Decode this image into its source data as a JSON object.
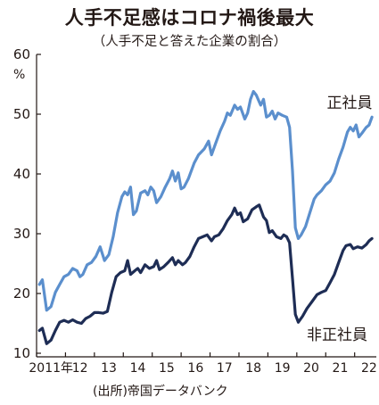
{
  "header": {
    "title": "人手不足感はコロナ禍後最大",
    "subtitle": "（人手不足と答えた企業の割合）"
  },
  "source": "(出所)帝国データバンク",
  "chart_data": {
    "type": "line",
    "title": "人手不足感はコロナ禍後最大",
    "subtitle": "（人手不足と答えた企業の割合）",
    "unit": "%",
    "xlabel": "",
    "ylabel": "",
    "ylim": [
      10,
      60
    ],
    "xlim": [
      2011,
      2022.75
    ],
    "yticks": [
      10,
      20,
      30,
      40,
      50,
      60
    ],
    "xticks": [
      {
        "x": 2011.5,
        "label": "2011年"
      },
      {
        "x": 2012.5,
        "label": "12"
      },
      {
        "x": 2013.5,
        "label": "13"
      },
      {
        "x": 2014.5,
        "label": "14"
      },
      {
        "x": 2015.5,
        "label": "15"
      },
      {
        "x": 2016.5,
        "label": "16"
      },
      {
        "x": 2017.5,
        "label": "17"
      },
      {
        "x": 2018.5,
        "label": "18"
      },
      {
        "x": 2019.5,
        "label": "19"
      },
      {
        "x": 2020.5,
        "label": "20"
      },
      {
        "x": 2021.5,
        "label": "21"
      },
      {
        "x": 2022.5,
        "label": "22"
      }
    ],
    "grid": false,
    "legend": "inline labels at right",
    "series": [
      {
        "name": "正社員",
        "color": "#5b8fcd",
        "points": [
          [
            2011.1,
            21.5
          ],
          [
            2011.2,
            22.3
          ],
          [
            2011.35,
            17.2
          ],
          [
            2011.5,
            17.8
          ],
          [
            2011.65,
            20.2
          ],
          [
            2011.8,
            21.5
          ],
          [
            2011.95,
            22.8
          ],
          [
            2012.1,
            23.2
          ],
          [
            2012.25,
            24.2
          ],
          [
            2012.4,
            23.8
          ],
          [
            2012.5,
            22.8
          ],
          [
            2012.6,
            23.2
          ],
          [
            2012.75,
            24.8
          ],
          [
            2012.9,
            25.2
          ],
          [
            2013.05,
            26.2
          ],
          [
            2013.2,
            27.8
          ],
          [
            2013.35,
            25.5
          ],
          [
            2013.5,
            26.5
          ],
          [
            2013.65,
            29.5
          ],
          [
            2013.8,
            33.5
          ],
          [
            2013.95,
            36.2
          ],
          [
            2014.05,
            37.0
          ],
          [
            2014.15,
            36.5
          ],
          [
            2014.25,
            37.8
          ],
          [
            2014.35,
            33.2
          ],
          [
            2014.45,
            33.8
          ],
          [
            2014.6,
            36.8
          ],
          [
            2014.75,
            37.2
          ],
          [
            2014.85,
            36.5
          ],
          [
            2014.95,
            37.8
          ],
          [
            2015.05,
            37.2
          ],
          [
            2015.15,
            35.2
          ],
          [
            2015.3,
            36.2
          ],
          [
            2015.45,
            37.8
          ],
          [
            2015.6,
            39.2
          ],
          [
            2015.7,
            40.5
          ],
          [
            2015.8,
            38.8
          ],
          [
            2015.9,
            40.2
          ],
          [
            2016.0,
            37.5
          ],
          [
            2016.1,
            37.8
          ],
          [
            2016.25,
            39.2
          ],
          [
            2016.45,
            41.8
          ],
          [
            2016.6,
            43.2
          ],
          [
            2016.8,
            44.2
          ],
          [
            2016.95,
            45.5
          ],
          [
            2017.05,
            43.2
          ],
          [
            2017.2,
            45.2
          ],
          [
            2017.35,
            47.2
          ],
          [
            2017.5,
            48.8
          ],
          [
            2017.6,
            50.2
          ],
          [
            2017.7,
            49.8
          ],
          [
            2017.85,
            51.5
          ],
          [
            2017.95,
            50.8
          ],
          [
            2018.05,
            51.2
          ],
          [
            2018.2,
            49.2
          ],
          [
            2018.3,
            50.2
          ],
          [
            2018.4,
            52.5
          ],
          [
            2018.5,
            53.8
          ],
          [
            2018.6,
            53.2
          ],
          [
            2018.75,
            51.5
          ],
          [
            2018.85,
            52.5
          ],
          [
            2018.95,
            49.5
          ],
          [
            2019.05,
            49.8
          ],
          [
            2019.15,
            50.5
          ],
          [
            2019.25,
            49.2
          ],
          [
            2019.35,
            50.2
          ],
          [
            2019.5,
            49.8
          ],
          [
            2019.65,
            49.5
          ],
          [
            2019.75,
            47.8
          ],
          [
            2019.85,
            40.5
          ],
          [
            2019.95,
            31.0
          ],
          [
            2020.05,
            29.2
          ],
          [
            2020.15,
            29.8
          ],
          [
            2020.3,
            31.2
          ],
          [
            2020.45,
            33.5
          ],
          [
            2020.6,
            35.8
          ],
          [
            2020.7,
            36.5
          ],
          [
            2020.85,
            37.2
          ],
          [
            2021.0,
            38.2
          ],
          [
            2021.15,
            38.8
          ],
          [
            2021.3,
            40.2
          ],
          [
            2021.45,
            42.5
          ],
          [
            2021.6,
            44.5
          ],
          [
            2021.75,
            47.0
          ],
          [
            2021.85,
            47.8
          ],
          [
            2021.95,
            47.2
          ],
          [
            2022.05,
            48.2
          ],
          [
            2022.15,
            46.2
          ],
          [
            2022.25,
            46.8
          ],
          [
            2022.4,
            47.8
          ],
          [
            2022.5,
            48.2
          ],
          [
            2022.6,
            49.5
          ]
        ]
      },
      {
        "name": "非正社員",
        "color": "#1e2d55",
        "points": [
          [
            2011.1,
            13.8
          ],
          [
            2011.2,
            14.2
          ],
          [
            2011.35,
            11.6
          ],
          [
            2011.5,
            12.2
          ],
          [
            2011.65,
            13.8
          ],
          [
            2011.8,
            15.2
          ],
          [
            2011.95,
            15.5
          ],
          [
            2012.1,
            15.2
          ],
          [
            2012.25,
            15.6
          ],
          [
            2012.4,
            15.2
          ],
          [
            2012.55,
            15.0
          ],
          [
            2012.7,
            15.8
          ],
          [
            2012.85,
            16.2
          ],
          [
            2013.0,
            16.8
          ],
          [
            2013.15,
            16.8
          ],
          [
            2013.3,
            16.7
          ],
          [
            2013.45,
            17.0
          ],
          [
            2013.6,
            20.2
          ],
          [
            2013.75,
            22.8
          ],
          [
            2013.9,
            23.5
          ],
          [
            2014.05,
            23.8
          ],
          [
            2014.15,
            25.5
          ],
          [
            2014.25,
            23.2
          ],
          [
            2014.4,
            23.8
          ],
          [
            2014.5,
            24.2
          ],
          [
            2014.6,
            23.5
          ],
          [
            2014.75,
            24.8
          ],
          [
            2014.9,
            24.2
          ],
          [
            2015.05,
            24.5
          ],
          [
            2015.15,
            25.5
          ],
          [
            2015.25,
            24.0
          ],
          [
            2015.4,
            24.5
          ],
          [
            2015.55,
            25.2
          ],
          [
            2015.7,
            26.0
          ],
          [
            2015.8,
            24.8
          ],
          [
            2015.9,
            25.5
          ],
          [
            2016.05,
            24.8
          ],
          [
            2016.15,
            25.2
          ],
          [
            2016.3,
            26.2
          ],
          [
            2016.45,
            27.8
          ],
          [
            2016.6,
            29.2
          ],
          [
            2016.75,
            29.5
          ],
          [
            2016.9,
            29.8
          ],
          [
            2017.05,
            28.8
          ],
          [
            2017.15,
            29.5
          ],
          [
            2017.3,
            29.8
          ],
          [
            2017.45,
            30.8
          ],
          [
            2017.6,
            32.2
          ],
          [
            2017.75,
            33.2
          ],
          [
            2017.85,
            34.3
          ],
          [
            2017.95,
            33.2
          ],
          [
            2018.05,
            33.5
          ],
          [
            2018.15,
            32.0
          ],
          [
            2018.3,
            32.5
          ],
          [
            2018.45,
            34.0
          ],
          [
            2018.6,
            34.5
          ],
          [
            2018.7,
            34.8
          ],
          [
            2018.85,
            32.8
          ],
          [
            2018.95,
            32.2
          ],
          [
            2019.05,
            30.2
          ],
          [
            2019.15,
            30.5
          ],
          [
            2019.3,
            29.5
          ],
          [
            2019.45,
            29.2
          ],
          [
            2019.55,
            29.8
          ],
          [
            2019.65,
            29.5
          ],
          [
            2019.75,
            28.5
          ],
          [
            2019.85,
            22.5
          ],
          [
            2019.95,
            16.5
          ],
          [
            2020.05,
            15.2
          ],
          [
            2020.2,
            16.2
          ],
          [
            2020.35,
            17.5
          ],
          [
            2020.55,
            18.8
          ],
          [
            2020.7,
            19.8
          ],
          [
            2020.85,
            20.2
          ],
          [
            2021.0,
            20.5
          ],
          [
            2021.15,
            21.8
          ],
          [
            2021.3,
            23.2
          ],
          [
            2021.45,
            25.2
          ],
          [
            2021.6,
            27.2
          ],
          [
            2021.7,
            28.0
          ],
          [
            2021.85,
            28.2
          ],
          [
            2021.95,
            27.5
          ],
          [
            2022.1,
            27.8
          ],
          [
            2022.25,
            27.6
          ],
          [
            2022.4,
            28.2
          ],
          [
            2022.5,
            28.8
          ],
          [
            2022.6,
            29.2
          ]
        ]
      }
    ]
  }
}
